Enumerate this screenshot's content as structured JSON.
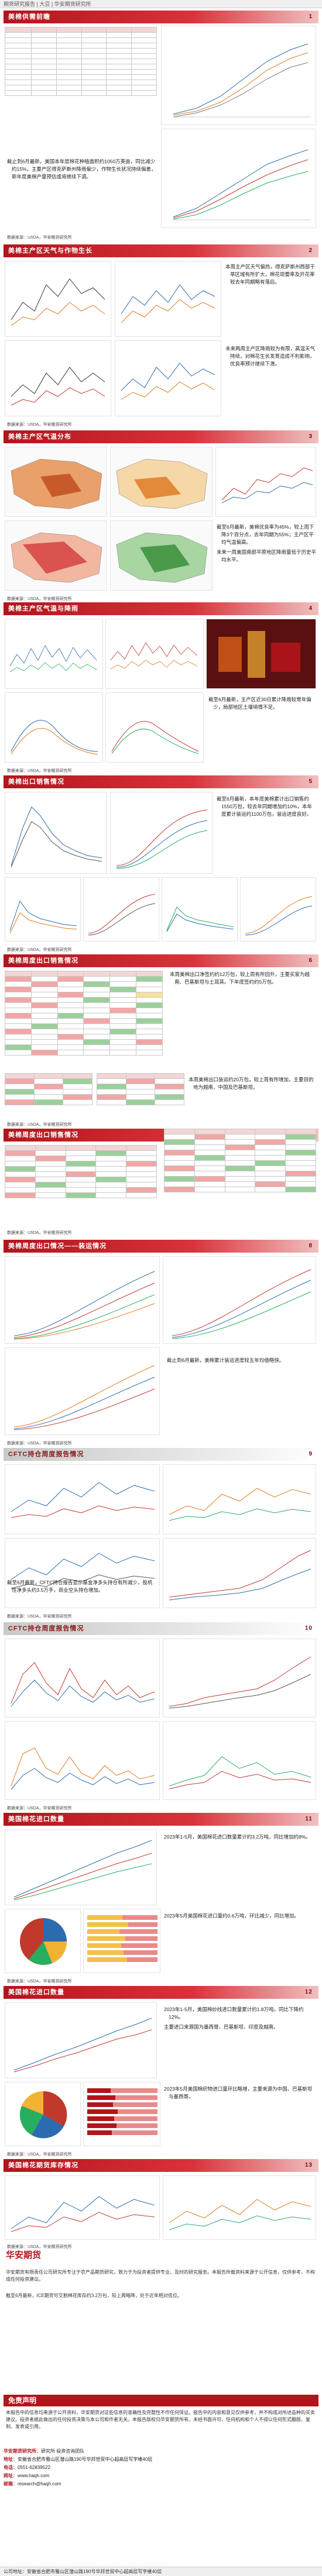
{
  "topbar": "期货研究报告 | 大豆 | 华安期货研究所",
  "sections": [
    {
      "id": "s1",
      "title": "美棉供需前瞻",
      "num": "1"
    },
    {
      "id": "s2",
      "title": "美棉主产区天气与作物生长",
      "num": "2"
    },
    {
      "id": "s3",
      "title": "美棉主产区气温分布",
      "num": "3"
    },
    {
      "id": "s4",
      "title": "美棉主产区气温与降雨",
      "num": "4"
    },
    {
      "id": "s5",
      "title": "美棉出口销售情况",
      "num": "5"
    },
    {
      "id": "s6",
      "title": "美棉周度出口销售情况",
      "num": "6"
    },
    {
      "id": "s7",
      "title": "美棉周度出口销售情况",
      "num": "7"
    },
    {
      "id": "s8",
      "title": "美棉周度出口情况——装运情况",
      "num": "8"
    },
    {
      "id": "s9",
      "title": "CFTC持仓周度报告情况",
      "num": "9"
    },
    {
      "id": "s10",
      "title": "CFTC持仓周度报告情况",
      "num": "10"
    },
    {
      "id": "s11",
      "title": "美国棉花进口数量",
      "num": "11"
    },
    {
      "id": "s12",
      "title": "美国棉花进口数量",
      "num": "12"
    },
    {
      "id": "s13",
      "title": "美国棉花期货库存情况",
      "num": "13"
    }
  ],
  "source": "数据来源：USDA，华安期货研究所",
  "text": {
    "s1": "截止到6月最新，美国本年度棉花种植面积约1050万英亩，同比减少约15%，主要产区得克萨斯州降雨偏少，作物生长状况持续偏差，新年度美棉产量预估或将继续下调。",
    "s2a": "本周主产区天气偏热，得克萨斯州西部干旱区域有所扩大，棉花现蕾率及开花率较去年同期略有落后。",
    "s2b": "未来两周主产区降雨较为有限，高温天气持续，对棉花生长发育造成不利影响，优良率预计继续下滑。",
    "s3": "截至6月最新，美棉优良率为45%，较上周下降3个百分点，去年同期为55%；主产区平均气温偏高。",
    "s3b": "未来一周美国南部平原地区降雨量低于历史平均水平。",
    "s4a": "截至6月最新，主产区近30日累计降雨较常年偏少，局部地区土壤墒情不足。",
    "s5": "截至6月最新，本年度美棉累计出口销售约1550万包，较去年同期增加约10%，本年度累计装运约1100万包，装运进度良好。",
    "s6": "本周美棉出口净签约约12万包，较上周有所回升，主要买家为越南、巴基斯坦与土耳其。下年度签约约5万包。",
    "s6b": "本周美棉出口装运约20万包，较上周有所增加，主要目的地为越南、中国及巴基斯坦。",
    "s8": "截止到6月最新，美棉累计装运进度较五年均值略快。",
    "s9": "截至6月最新，CFTC持仓报告显示基金净多头持仓有所减少，投机性净多头约3.5万手，商业空头持仓增加。",
    "s11a": "2023年1-5月，美国棉花进口数量累计约3.2万吨，同比增加约8%。",
    "s11b": "2023年5月美国棉花进口量约0.6万吨，环比减少，同比增加。",
    "s12a": "2023年1-5月，美国棉纱线进口数量累计约1.8万吨，同比下降约12%。",
    "s12b": "主要进口来源国为墨西哥、巴基斯坦、印度及越南。",
    "s12c": "2023年5月美国棉织物进口量环比略增，主要来源为中国、巴基斯坦与墨西哥。",
    "s13": "截至6月最新，ICE期货可交割棉花库存约3.2万包，较上周略降，处于近年相对低位。"
  },
  "footer": {
    "logo": "华安期货",
    "intro": "华安期货有限责任公司研究所专注于农产品期货研究，致力于为投资者提供专业、及时的研究服务。本报告所载资料来源于公开信息，仅供参考，不构成任何投资建议。",
    "disclaimer_title": "免责声明",
    "disclaimer": "本报告中的信息均来源于公开资料，华安期货对这些信息的准确性及完整性不作任何保证。报告中的内容和意见仅供参考，并不构成对所述品种的买卖建议。投资者据此做出的任何投资决策与本公司和作者无关。本报告版权归华安期货所有，未经书面许可，任何机构和个人不得以任何形式翻版、复制、发表或引用。",
    "contacts": [
      {
        "label": "华安期货研究所",
        "value": "研究所 投资咨询团队"
      },
      {
        "label": "地址",
        "value": "安徽省合肥市蜀山区潜山路190号华邦世贸中心超高层写字楼40层"
      },
      {
        "label": "电话",
        "value": "0551-62839522"
      },
      {
        "label": "网址",
        "value": "www.haqh.com"
      },
      {
        "label": "邮箱",
        "value": "research@haqh.com"
      }
    ],
    "bottom": "公司地址：安徽省合肥市蜀山区潜山路190号华邦世贸中心超高层写字楼40层"
  }
}
